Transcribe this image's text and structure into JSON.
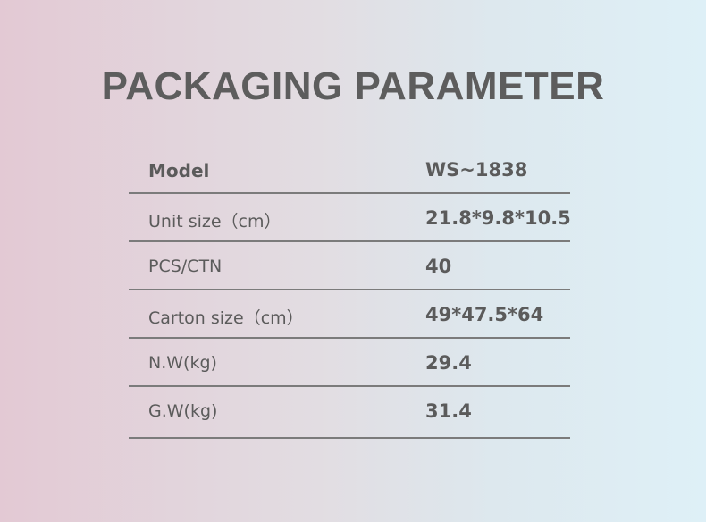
{
  "title": "PACKAGING PARAMETER",
  "rows": [
    {
      "label": "Model",
      "value": "WS~1838"
    },
    {
      "label": "Unit size（cm）",
      "value": "21.8*9.8*10.5"
    },
    {
      "label": "PCS/CTN",
      "value": "40"
    },
    {
      "label": "Carton size（cm）",
      "value": "49*47.5*64"
    },
    {
      "label": "N.W(kg)",
      "value": "29.4"
    },
    {
      "label": "G.W(kg)",
      "value": "31.4"
    }
  ]
}
